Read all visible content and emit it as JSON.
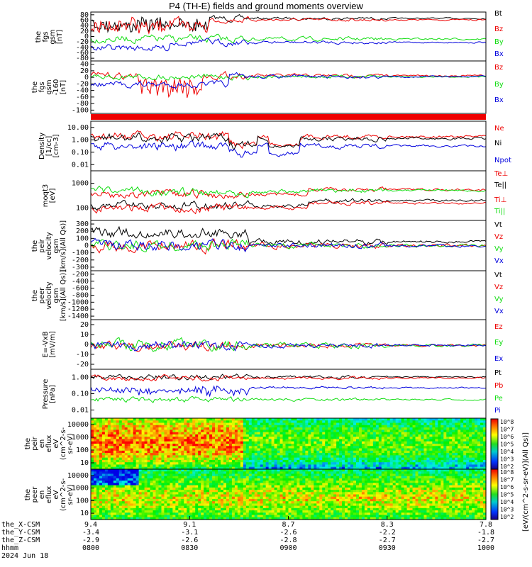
{
  "title": "P4 (TH-E) fields and ground moments overview",
  "colors": {
    "black": "#000000",
    "red": "#ee0000",
    "green": "#11dd11",
    "blue": "#0000dd"
  },
  "chart_data": [
    {
      "type": "line",
      "id": "p1",
      "ylabel": [
        "the",
        "fgs",
        "gsm",
        "[nT]"
      ],
      "yticks": [
        "80",
        "60",
        "40",
        "20",
        "0",
        "-20",
        "-40",
        "-60",
        "-80"
      ],
      "ylim": [
        -80,
        85
      ],
      "series": [
        {
          "name": "Bt",
          "color": "black"
        },
        {
          "name": "Bz",
          "color": "red"
        },
        {
          "name": "By",
          "color": "green"
        },
        {
          "name": "Bx",
          "color": "blue"
        }
      ]
    },
    {
      "type": "line",
      "id": "p2",
      "ylabel": [
        "the",
        "fgs",
        "gsm",
        "-160",
        "[nT]"
      ],
      "yticks": [
        "40",
        "20",
        "0",
        "-20",
        "-40",
        "-60",
        "-80",
        "-100"
      ],
      "ylim": [
        -100,
        45
      ],
      "series": [
        {
          "name": "Bz",
          "color": "red"
        },
        {
          "name": "By",
          "color": "green"
        },
        {
          "name": "Bx",
          "color": "blue"
        }
      ]
    },
    {
      "type": "line",
      "id": "p3",
      "log": true,
      "ylabel": [
        "Density",
        "[1/cc]",
        "[cm-3]"
      ],
      "yticks": [
        "10.00",
        "1.00",
        "0.10",
        "0.01"
      ],
      "ylim": [
        0.01,
        20
      ],
      "series": [
        {
          "name": "Ne",
          "color": "red"
        },
        {
          "name": "Ni",
          "color": "black"
        },
        {
          "name": "Npot",
          "color": "blue"
        }
      ]
    },
    {
      "type": "line",
      "id": "p4",
      "log": true,
      "ylabel": [
        "moqt3",
        "[eV]"
      ],
      "yticks": [
        "1000",
        "100"
      ],
      "ylim": [
        70,
        6000
      ],
      "series": [
        {
          "name": "Te⊥",
          "color": "red"
        },
        {
          "name": "Te||",
          "color": "black"
        },
        {
          "name": "Ti⊥",
          "color": "red"
        },
        {
          "name": "Ti||",
          "color": "green"
        }
      ]
    },
    {
      "type": "line",
      "id": "p5",
      "ylabel": [
        "the",
        "peir",
        "velocity",
        "gsm",
        "[km/s](All Qs)]"
      ],
      "yticks": [
        "300",
        "200",
        "100",
        "0",
        "-100",
        "-200",
        "-300"
      ],
      "ylim": [
        -300,
        320
      ],
      "series": [
        {
          "name": "Vt",
          "color": "black"
        },
        {
          "name": "Vz",
          "color": "red"
        },
        {
          "name": "Vy",
          "color": "green"
        },
        {
          "name": "Vx",
          "color": "blue"
        }
      ]
    },
    {
      "type": "line",
      "id": "p6",
      "ylabel": [
        "the",
        "peer",
        "velocity",
        "gsm",
        "[km/s](All Qs)]"
      ],
      "yticks": [
        "-200",
        "-400",
        "-600",
        "-800",
        "-1000",
        "-1200",
        "-1400"
      ],
      "ylim": [
        -1480,
        -100
      ],
      "series": [
        {
          "name": "Vt",
          "color": "black"
        },
        {
          "name": "Vz",
          "color": "red"
        },
        {
          "name": "Vy",
          "color": "green"
        },
        {
          "name": "Vx",
          "color": "blue"
        }
      ]
    },
    {
      "type": "line",
      "id": "p7",
      "ylabel": [
        "E=-VxB",
        "[mV/m]"
      ],
      "yticks": [
        "20",
        "10",
        "0",
        "-10",
        "-20"
      ],
      "ylim": [
        -22,
        22
      ],
      "series": [
        {
          "name": "Ez",
          "color": "red"
        },
        {
          "name": "Ey",
          "color": "green"
        },
        {
          "name": "Ex",
          "color": "blue"
        }
      ]
    },
    {
      "type": "line",
      "id": "p8",
      "log": true,
      "ylabel": [
        "Pressure",
        "[nPa]"
      ],
      "yticks": [
        "1.00",
        "0.10",
        "0.01"
      ],
      "ylim": [
        0.005,
        2.6
      ],
      "series": [
        {
          "name": "Pt",
          "color": "black"
        },
        {
          "name": "Pb",
          "color": "red"
        },
        {
          "name": "Pe",
          "color": "green"
        },
        {
          "name": "Pi",
          "color": "blue"
        }
      ]
    },
    {
      "type": "heatmap",
      "id": "p9",
      "ylabel": [
        "the",
        "peir",
        "en",
        "eflux",
        "eV",
        "(cm^2-s-",
        "sr-eV)"
      ],
      "yticks": [
        "10000",
        "1000",
        "100",
        "10"
      ],
      "ylim": [
        7,
        25000
      ]
    },
    {
      "type": "heatmap",
      "id": "p10",
      "ylabel": [
        "the",
        "peer",
        "en",
        "eflux",
        "eV",
        "(cm^2-s-",
        "sr-eV)"
      ],
      "yticks": [
        "10000",
        "1000",
        "100",
        "10"
      ],
      "ylim": [
        7,
        25000
      ]
    }
  ],
  "colorbar": {
    "label": "[eV/(cm^2-s-sr-eV)](All Qs)]",
    "top_ticks": [
      "10^8",
      "10^7",
      "10^6",
      "10^5",
      "10^4",
      "10^3",
      "10^2"
    ],
    "bottom_ticks": [
      "10^8",
      "10^7",
      "10^6",
      "10^5",
      "10^4",
      "10^3",
      "10^2"
    ]
  },
  "x_axis": {
    "rows": [
      {
        "label": "the_X-CSM",
        "values": [
          "9.4",
          "9.1",
          "8.7",
          "8.3",
          "7.8"
        ]
      },
      {
        "label": "the_Y-CSM",
        "values": [
          "-3.4",
          "-3.1",
          "-2.6",
          "-2.2",
          "-1.8"
        ]
      },
      {
        "label": "the_Z-CSM",
        "values": [
          "-2.9",
          "-2.6",
          "-2.8",
          "-2.7",
          "-2.7"
        ]
      },
      {
        "label": "hhmm",
        "values": [
          "0800",
          "0830",
          "0900",
          "0930",
          "1000"
        ]
      }
    ],
    "date": "2024 Jun 18"
  }
}
